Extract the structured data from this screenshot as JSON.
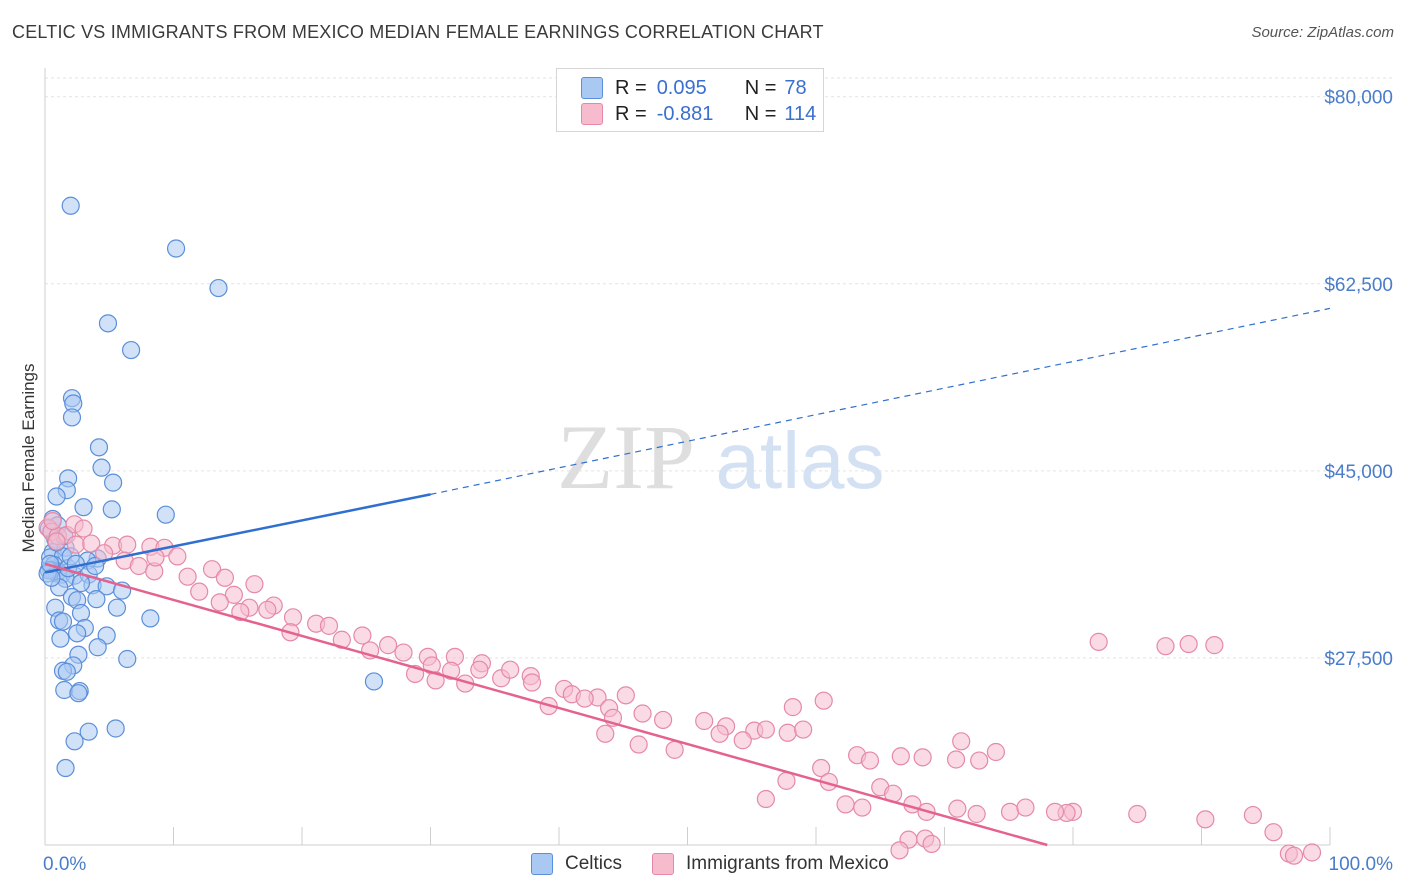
{
  "title": "CELTIC VS IMMIGRANTS FROM MEXICO MEDIAN FEMALE EARNINGS CORRELATION CHART",
  "source": "Source: ZipAtlas.com",
  "watermark": {
    "zip": "ZIP",
    "atlas": "atlas"
  },
  "colors": {
    "blue_fill": "#a9c8f2",
    "blue_stroke": "#5b8fd9",
    "blue_line": "#2f6fd0",
    "pink_fill": "#f6bccd",
    "pink_stroke": "#e58aa6",
    "pink_line": "#e4628d",
    "grid": "#e3e3e3",
    "tick_text": "#4a7cc9"
  },
  "legend": {
    "rows": [
      {
        "r_label": "R =",
        "r_value": "0.095",
        "n_label": "N =",
        "n_value": "78",
        "color": "#a9c8f2",
        "stroke": "#5b8fd9"
      },
      {
        "r_label": "R =",
        "r_value": "-0.881",
        "n_label": "N =",
        "n_value": "114",
        "color": "#f6bccd",
        "stroke": "#e58aa6"
      }
    ]
  },
  "bottom_legend": [
    {
      "label": "Celtics",
      "color": "#a9c8f2",
      "stroke": "#5b8fd9"
    },
    {
      "label": "Immigrants from Mexico",
      "color": "#f6bccd",
      "stroke": "#e58aa6"
    }
  ],
  "chart_data": {
    "type": "scatter",
    "title": "CELTIC VS IMMIGRANTS FROM MEXICO MEDIAN FEMALE EARNINGS CORRELATION CHART",
    "xlabel": "",
    "ylabel": "Median Female Earnings",
    "xlim": [
      0,
      100
    ],
    "ylim": [
      10000,
      82500
    ],
    "x_tick_labels": [
      {
        "value": 0,
        "label": "0.0%"
      },
      {
        "value": 100,
        "label": "100.0%"
      }
    ],
    "y_ticks": [
      {
        "value": 80000,
        "label": "$80,000"
      },
      {
        "value": 62500,
        "label": "$62,500"
      },
      {
        "value": 45000,
        "label": "$45,000"
      },
      {
        "value": 27500,
        "label": "$27,500"
      }
    ],
    "series": [
      {
        "name": "Celtics",
        "trend": {
          "x0": 0,
          "y0": 35500,
          "x1": 30,
          "y1": 42800,
          "dashed_to_x": 100,
          "dashed_to_y": 60200
        },
        "points": [
          [
            2.0,
            69800
          ],
          [
            10.2,
            65800
          ],
          [
            13.5,
            62100
          ],
          [
            4.9,
            58800
          ],
          [
            6.7,
            56300
          ],
          [
            2.1,
            51800
          ],
          [
            2.2,
            51300
          ],
          [
            2.1,
            50000
          ],
          [
            4.2,
            47200
          ],
          [
            4.4,
            45300
          ],
          [
            1.8,
            44300
          ],
          [
            5.3,
            43900
          ],
          [
            1.7,
            43200
          ],
          [
            0.9,
            42600
          ],
          [
            3.0,
            41600
          ],
          [
            5.2,
            41400
          ],
          [
            9.4,
            40900
          ],
          [
            0.6,
            40500
          ],
          [
            1.0,
            39900
          ],
          [
            0.5,
            39300
          ],
          [
            0.8,
            38600
          ],
          [
            0.6,
            37400
          ],
          [
            0.4,
            36900
          ],
          [
            1.6,
            37800
          ],
          [
            1.4,
            37000
          ],
          [
            0.7,
            36200
          ],
          [
            4.1,
            36800
          ],
          [
            3.3,
            36600
          ],
          [
            1.0,
            35600
          ],
          [
            0.5,
            35700
          ],
          [
            0.9,
            35400
          ],
          [
            1.3,
            35300
          ],
          [
            0.3,
            35700
          ],
          [
            2.3,
            35200
          ],
          [
            1.6,
            34900
          ],
          [
            3.4,
            35300
          ],
          [
            3.7,
            34300
          ],
          [
            4.8,
            34200
          ],
          [
            2.8,
            34500
          ],
          [
            1.1,
            34100
          ],
          [
            2.1,
            33200
          ],
          [
            4.0,
            33000
          ],
          [
            2.5,
            32900
          ],
          [
            5.6,
            32200
          ],
          [
            0.8,
            32200
          ],
          [
            2.8,
            31700
          ],
          [
            8.2,
            31200
          ],
          [
            1.1,
            31000
          ],
          [
            1.4,
            30900
          ],
          [
            3.1,
            30300
          ],
          [
            2.5,
            29800
          ],
          [
            4.8,
            29600
          ],
          [
            1.2,
            29300
          ],
          [
            4.1,
            28500
          ],
          [
            2.6,
            27800
          ],
          [
            6.4,
            27400
          ],
          [
            2.2,
            26800
          ],
          [
            1.4,
            26300
          ],
          [
            1.7,
            26200
          ],
          [
            25.6,
            25300
          ],
          [
            1.5,
            24500
          ],
          [
            2.7,
            24400
          ],
          [
            5.5,
            20900
          ],
          [
            3.4,
            20600
          ],
          [
            2.3,
            19700
          ],
          [
            1.6,
            17200
          ],
          [
            2.6,
            24200
          ],
          [
            0.2,
            35400
          ],
          [
            0.5,
            35000
          ],
          [
            1.8,
            35900
          ],
          [
            3.9,
            36100
          ],
          [
            0.4,
            36300
          ],
          [
            2.0,
            37000
          ],
          [
            6.0,
            33800
          ],
          [
            0.9,
            38300
          ],
          [
            1.5,
            38900
          ],
          [
            0.3,
            39600
          ],
          [
            2.4,
            36300
          ]
        ]
      },
      {
        "name": "Immigrants from Mexico",
        "trend": {
          "x0": 0,
          "y0": 36300,
          "x1": 78,
          "y1": 10000
        },
        "points": [
          [
            0.2,
            39700
          ],
          [
            0.5,
            39300
          ],
          [
            1.0,
            38900
          ],
          [
            1.7,
            39000
          ],
          [
            0.9,
            38400
          ],
          [
            2.4,
            38100
          ],
          [
            3.6,
            38200
          ],
          [
            5.3,
            38000
          ],
          [
            6.4,
            38100
          ],
          [
            8.2,
            37900
          ],
          [
            9.3,
            37800
          ],
          [
            10.3,
            37000
          ],
          [
            4.6,
            37300
          ],
          [
            6.2,
            36600
          ],
          [
            7.3,
            36100
          ],
          [
            8.5,
            35600
          ],
          [
            0.6,
            40300
          ],
          [
            2.3,
            40000
          ],
          [
            3.0,
            39600
          ],
          [
            11.1,
            35100
          ],
          [
            13.0,
            35800
          ],
          [
            8.6,
            36900
          ],
          [
            14.0,
            35000
          ],
          [
            16.3,
            34400
          ],
          [
            12.0,
            33700
          ],
          [
            14.7,
            33400
          ],
          [
            13.6,
            32700
          ],
          [
            17.8,
            32400
          ],
          [
            15.9,
            32200
          ],
          [
            17.3,
            32000
          ],
          [
            15.2,
            31800
          ],
          [
            19.3,
            31300
          ],
          [
            21.1,
            30700
          ],
          [
            19.1,
            29900
          ],
          [
            22.1,
            30500
          ],
          [
            23.1,
            29200
          ],
          [
            24.7,
            29600
          ],
          [
            26.7,
            28700
          ],
          [
            25.3,
            28200
          ],
          [
            27.9,
            28000
          ],
          [
            29.8,
            27600
          ],
          [
            31.9,
            27600
          ],
          [
            30.1,
            26800
          ],
          [
            31.6,
            26300
          ],
          [
            34.0,
            27000
          ],
          [
            33.8,
            26400
          ],
          [
            35.5,
            25600
          ],
          [
            37.8,
            25800
          ],
          [
            28.8,
            26000
          ],
          [
            30.4,
            25400
          ],
          [
            32.7,
            25100
          ],
          [
            36.2,
            26400
          ],
          [
            37.9,
            25200
          ],
          [
            40.4,
            24600
          ],
          [
            41.0,
            24100
          ],
          [
            43.0,
            23800
          ],
          [
            45.2,
            24000
          ],
          [
            46.5,
            22300
          ],
          [
            39.2,
            23000
          ],
          [
            42.0,
            23700
          ],
          [
            43.9,
            22800
          ],
          [
            48.1,
            21700
          ],
          [
            51.3,
            21600
          ],
          [
            53.0,
            21100
          ],
          [
            55.2,
            20700
          ],
          [
            56.1,
            20800
          ],
          [
            57.8,
            20500
          ],
          [
            59.0,
            20800
          ],
          [
            44.2,
            21900
          ],
          [
            43.6,
            20400
          ],
          [
            46.2,
            19400
          ],
          [
            49.0,
            18900
          ],
          [
            52.5,
            20400
          ],
          [
            54.3,
            19800
          ],
          [
            58.2,
            22900
          ],
          [
            60.6,
            23500
          ],
          [
            63.2,
            18400
          ],
          [
            64.2,
            17900
          ],
          [
            66.6,
            18300
          ],
          [
            68.3,
            18200
          ],
          [
            71.3,
            19700
          ],
          [
            70.9,
            18000
          ],
          [
            72.7,
            17900
          ],
          [
            74.0,
            18700
          ],
          [
            57.7,
            16000
          ],
          [
            60.4,
            17200
          ],
          [
            65.0,
            15400
          ],
          [
            56.1,
            14300
          ],
          [
            61.0,
            15900
          ],
          [
            66.0,
            14800
          ],
          [
            63.6,
            13500
          ],
          [
            62.3,
            13800
          ],
          [
            67.5,
            13800
          ],
          [
            71.0,
            13400
          ],
          [
            68.6,
            13100
          ],
          [
            72.5,
            12900
          ],
          [
            75.1,
            13100
          ],
          [
            80.0,
            13100
          ],
          [
            76.3,
            13500
          ],
          [
            79.5,
            13000
          ],
          [
            90.3,
            12400
          ],
          [
            95.6,
            11200
          ],
          [
            91.0,
            28700
          ],
          [
            78.6,
            13100
          ],
          [
            89.0,
            28800
          ],
          [
            98.6,
            9300
          ],
          [
            85.0,
            12900
          ],
          [
            94.0,
            12800
          ],
          [
            82.0,
            29000
          ],
          [
            87.2,
            28600
          ],
          [
            96.8,
            9200
          ],
          [
            97.2,
            9000
          ],
          [
            67.2,
            10500
          ],
          [
            68.5,
            10600
          ],
          [
            66.5,
            9500
          ],
          [
            69.0,
            10100
          ]
        ]
      }
    ]
  }
}
